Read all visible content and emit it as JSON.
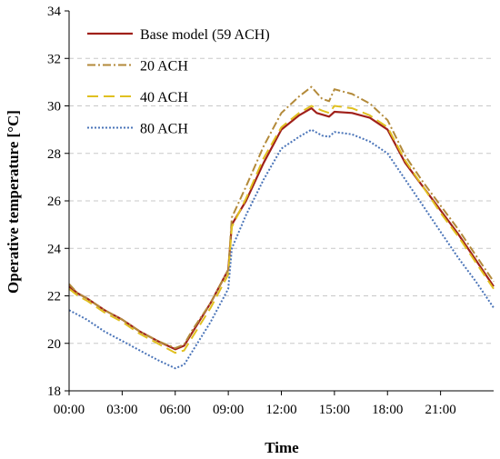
{
  "chart_data": {
    "type": "line",
    "title": "",
    "xlabel": "Time",
    "ylabel": "Operative temperature [°C]",
    "ylim": [
      18,
      34
    ],
    "yticks": [
      18,
      20,
      22,
      24,
      26,
      28,
      30,
      32,
      34
    ],
    "xlim": [
      0,
      24
    ],
    "xtick_values": [
      0,
      3,
      6,
      9,
      12,
      15,
      18,
      21
    ],
    "xtick_labels": [
      "00:00",
      "03:00",
      "06:00",
      "09:00",
      "12:00",
      "15:00",
      "18:00",
      "21:00"
    ],
    "grid": "horizontal dashed",
    "legend_position": "top-left",
    "series": [
      {
        "name": "Base model (59 ACH)",
        "color": "#a0201a",
        "dash": "solid",
        "points": [
          [
            0,
            22.4
          ],
          [
            0.5,
            22.1
          ],
          [
            1,
            21.9
          ],
          [
            2,
            21.4
          ],
          [
            3,
            21.0
          ],
          [
            4,
            20.5
          ],
          [
            5,
            20.1
          ],
          [
            6,
            19.75
          ],
          [
            6.5,
            19.9
          ],
          [
            7,
            20.5
          ],
          [
            8,
            21.7
          ],
          [
            9,
            23.1
          ],
          [
            9.2,
            25.0
          ],
          [
            10,
            26.0
          ],
          [
            11,
            27.6
          ],
          [
            12,
            29.0
          ],
          [
            13,
            29.6
          ],
          [
            13.7,
            29.9
          ],
          [
            14,
            29.7
          ],
          [
            14.7,
            29.55
          ],
          [
            15,
            29.75
          ],
          [
            16,
            29.7
          ],
          [
            17,
            29.5
          ],
          [
            18,
            29.0
          ],
          [
            19,
            27.6
          ],
          [
            20,
            26.6
          ],
          [
            21,
            25.6
          ],
          [
            22,
            24.6
          ],
          [
            23,
            23.5
          ],
          [
            24,
            22.4
          ]
        ]
      },
      {
        "name": "20 ACH",
        "color": "#b38a3a",
        "dash": "dashdot",
        "points": [
          [
            0,
            22.5
          ],
          [
            0.5,
            22.1
          ],
          [
            1,
            21.9
          ],
          [
            2,
            21.4
          ],
          [
            3,
            21.0
          ],
          [
            4,
            20.5
          ],
          [
            5,
            20.1
          ],
          [
            6,
            19.8
          ],
          [
            6.5,
            19.95
          ],
          [
            7,
            20.6
          ],
          [
            8,
            21.7
          ],
          [
            9,
            23.1
          ],
          [
            9.2,
            25.3
          ],
          [
            10,
            26.6
          ],
          [
            11,
            28.3
          ],
          [
            12,
            29.7
          ],
          [
            13,
            30.4
          ],
          [
            13.7,
            30.8
          ],
          [
            14.3,
            30.3
          ],
          [
            14.7,
            30.2
          ],
          [
            15,
            30.7
          ],
          [
            16,
            30.5
          ],
          [
            17,
            30.1
          ],
          [
            18,
            29.4
          ],
          [
            19,
            27.9
          ],
          [
            20,
            26.8
          ],
          [
            21,
            25.8
          ],
          [
            22,
            24.8
          ],
          [
            23,
            23.7
          ],
          [
            24,
            22.6
          ]
        ]
      },
      {
        "name": "40 ACH",
        "color": "#e0c020",
        "dash": "longdash",
        "points": [
          [
            0,
            22.3
          ],
          [
            0.5,
            22.0
          ],
          [
            1,
            21.8
          ],
          [
            2,
            21.3
          ],
          [
            3,
            20.9
          ],
          [
            4,
            20.4
          ],
          [
            5,
            20.0
          ],
          [
            6,
            19.6
          ],
          [
            6.5,
            19.7
          ],
          [
            7,
            20.3
          ],
          [
            8,
            21.5
          ],
          [
            9,
            22.9
          ],
          [
            9.2,
            24.9
          ],
          [
            10,
            26.1
          ],
          [
            11,
            27.8
          ],
          [
            12,
            29.1
          ],
          [
            13,
            29.7
          ],
          [
            13.7,
            30.0
          ],
          [
            14.3,
            29.8
          ],
          [
            14.7,
            29.7
          ],
          [
            15,
            30.0
          ],
          [
            16,
            29.9
          ],
          [
            17,
            29.6
          ],
          [
            18,
            29.1
          ],
          [
            19,
            27.7
          ],
          [
            20,
            26.6
          ],
          [
            21,
            25.5
          ],
          [
            22,
            24.5
          ],
          [
            23,
            23.4
          ],
          [
            24,
            22.3
          ]
        ]
      },
      {
        "name": "80 ACH",
        "color": "#4a74b8",
        "dash": "dotted",
        "points": [
          [
            0,
            21.4
          ],
          [
            0.5,
            21.2
          ],
          [
            1,
            21.0
          ],
          [
            2,
            20.5
          ],
          [
            3,
            20.1
          ],
          [
            4,
            19.7
          ],
          [
            5,
            19.3
          ],
          [
            6,
            18.95
          ],
          [
            6.5,
            19.1
          ],
          [
            7,
            19.7
          ],
          [
            8,
            20.9
          ],
          [
            9,
            22.3
          ],
          [
            9.2,
            24.0
          ],
          [
            10,
            25.4
          ],
          [
            11,
            26.9
          ],
          [
            12,
            28.2
          ],
          [
            13,
            28.7
          ],
          [
            13.7,
            29.0
          ],
          [
            14.3,
            28.75
          ],
          [
            14.7,
            28.7
          ],
          [
            15,
            28.9
          ],
          [
            16,
            28.8
          ],
          [
            17,
            28.5
          ],
          [
            18,
            28.0
          ],
          [
            19,
            26.9
          ],
          [
            20,
            25.8
          ],
          [
            21,
            24.7
          ],
          [
            22,
            23.6
          ],
          [
            23,
            22.6
          ],
          [
            24,
            21.5
          ]
        ]
      }
    ]
  }
}
